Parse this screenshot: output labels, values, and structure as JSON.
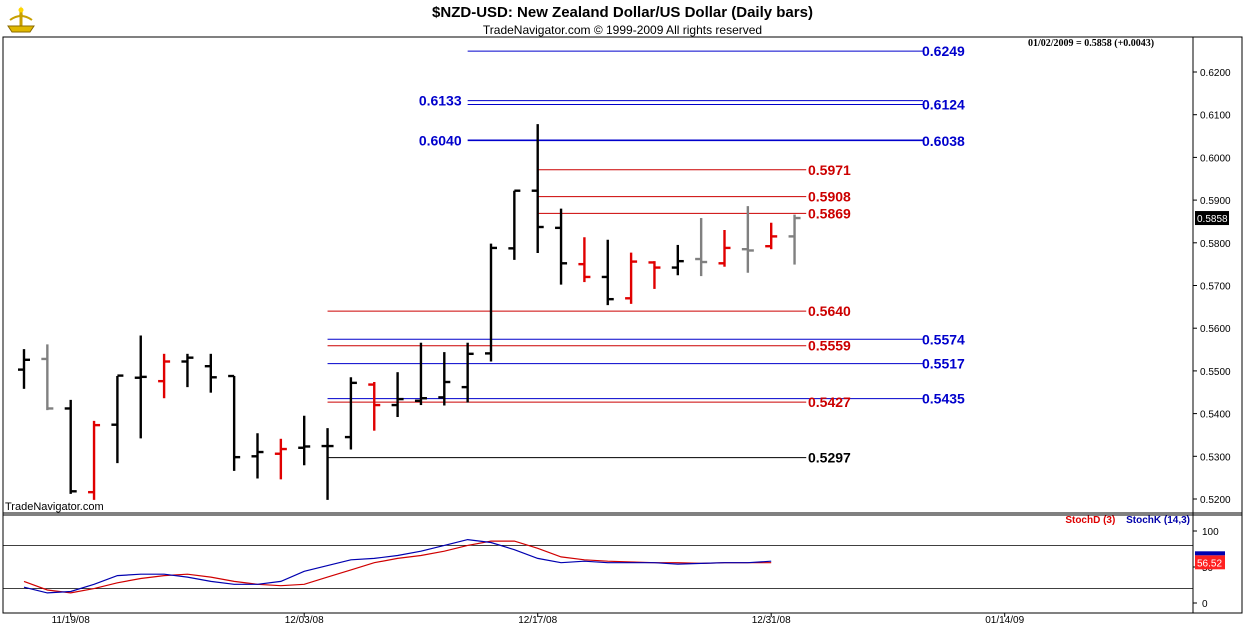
{
  "header": {
    "title": "$NZD-USD:  New Zealand Dollar/US Dollar  (Daily bars)",
    "copyright": "TradeNavigator.com © 1999-2009 All rights reserved",
    "readout": "01/02/2009 = 0.5858 (+0.0043)",
    "watermark": "TradeNavigator.com"
  },
  "stoch_legend": {
    "d": "StochD (3)",
    "k": "StochK (14,3)"
  },
  "colors": {
    "up": "#000000",
    "down": "#e00000",
    "neutral": "#808080",
    "blue": "#0000cc",
    "red": "#cc0000"
  },
  "chart_data": [
    {
      "type": "ohlc",
      "ylim": [
        0.518,
        0.626
      ],
      "y_ticks": [
        "0.5200",
        "0.5300",
        "0.5400",
        "0.5500",
        "0.5600",
        "0.5700",
        "0.5800",
        "0.5900",
        "0.6000",
        "0.6100",
        "0.6200"
      ],
      "x_ticks": [
        {
          "label": "11/19/08",
          "index": 2
        },
        {
          "label": "12/03/08",
          "index": 12
        },
        {
          "label": "12/17/08",
          "index": 22
        },
        {
          "label": "12/31/08",
          "index": 32
        },
        {
          "label": "01/14/09",
          "index": 42
        }
      ],
      "last_price": {
        "label": "0.5858",
        "value": 0.5858
      },
      "bars": [
        {
          "o": 0.5503,
          "h": 0.5551,
          "l": 0.5458,
          "c": 0.5526,
          "color": "up"
        },
        {
          "o": 0.5528,
          "h": 0.5562,
          "l": 0.5408,
          "c": 0.5412,
          "color": "neutral"
        },
        {
          "o": 0.5412,
          "h": 0.5432,
          "l": 0.5212,
          "c": 0.5218,
          "color": "up"
        },
        {
          "o": 0.5216,
          "h": 0.5383,
          "l": 0.5198,
          "c": 0.5373,
          "color": "down"
        },
        {
          "o": 0.5374,
          "h": 0.5488,
          "l": 0.5284,
          "c": 0.5489,
          "color": "up"
        },
        {
          "o": 0.5484,
          "h": 0.5583,
          "l": 0.5342,
          "c": 0.5486,
          "color": "up"
        },
        {
          "o": 0.5476,
          "h": 0.554,
          "l": 0.5436,
          "c": 0.5522,
          "color": "down"
        },
        {
          "o": 0.5522,
          "h": 0.554,
          "l": 0.5462,
          "c": 0.5531,
          "color": "up"
        },
        {
          "o": 0.5511,
          "h": 0.554,
          "l": 0.5449,
          "c": 0.5485,
          "color": "up"
        },
        {
          "o": 0.5488,
          "h": 0.5488,
          "l": 0.5266,
          "c": 0.5298,
          "color": "up"
        },
        {
          "o": 0.53,
          "h": 0.5354,
          "l": 0.5248,
          "c": 0.531,
          "color": "up"
        },
        {
          "o": 0.5306,
          "h": 0.5341,
          "l": 0.5246,
          "c": 0.5317,
          "color": "down"
        },
        {
          "o": 0.532,
          "h": 0.5395,
          "l": 0.5279,
          "c": 0.5323,
          "color": "up"
        },
        {
          "o": 0.5324,
          "h": 0.5366,
          "l": 0.5198,
          "c": 0.5324,
          "color": "up"
        },
        {
          "o": 0.5345,
          "h": 0.5485,
          "l": 0.5316,
          "c": 0.5472,
          "color": "up"
        },
        {
          "o": 0.5468,
          "h": 0.5474,
          "l": 0.536,
          "c": 0.542,
          "color": "down"
        },
        {
          "o": 0.542,
          "h": 0.5497,
          "l": 0.5392,
          "c": 0.5434,
          "color": "up"
        },
        {
          "o": 0.543,
          "h": 0.5566,
          "l": 0.542,
          "c": 0.5436,
          "color": "up"
        },
        {
          "o": 0.5438,
          "h": 0.5544,
          "l": 0.5419,
          "c": 0.5474,
          "color": "up"
        },
        {
          "o": 0.5462,
          "h": 0.5566,
          "l": 0.5426,
          "c": 0.554,
          "color": "up"
        },
        {
          "o": 0.5541,
          "h": 0.5798,
          "l": 0.5522,
          "c": 0.5788,
          "color": "up"
        },
        {
          "o": 0.5787,
          "h": 0.5922,
          "l": 0.576,
          "c": 0.5922,
          "color": "up"
        },
        {
          "o": 0.5922,
          "h": 0.6078,
          "l": 0.5776,
          "c": 0.5837,
          "color": "up"
        },
        {
          "o": 0.5835,
          "h": 0.588,
          "l": 0.5702,
          "c": 0.5752,
          "color": "up"
        },
        {
          "o": 0.575,
          "h": 0.5813,
          "l": 0.5708,
          "c": 0.572,
          "color": "down"
        },
        {
          "o": 0.572,
          "h": 0.5807,
          "l": 0.5654,
          "c": 0.5668,
          "color": "up"
        },
        {
          "o": 0.567,
          "h": 0.5777,
          "l": 0.5657,
          "c": 0.5756,
          "color": "down"
        },
        {
          "o": 0.5754,
          "h": 0.5757,
          "l": 0.5692,
          "c": 0.5742,
          "color": "down"
        },
        {
          "o": 0.5742,
          "h": 0.5795,
          "l": 0.5724,
          "c": 0.5757,
          "color": "up"
        },
        {
          "o": 0.5762,
          "h": 0.5858,
          "l": 0.5722,
          "c": 0.5755,
          "color": "neutral"
        },
        {
          "o": 0.5752,
          "h": 0.583,
          "l": 0.5744,
          "c": 0.5788,
          "color": "down"
        },
        {
          "o": 0.5785,
          "h": 0.5886,
          "l": 0.573,
          "c": 0.5782,
          "color": "neutral"
        },
        {
          "o": 0.5792,
          "h": 0.5847,
          "l": 0.5785,
          "c": 0.5815,
          "color": "down"
        },
        {
          "o": 0.5815,
          "h": 0.5866,
          "l": 0.5749,
          "c": 0.5858,
          "color": "neutral"
        }
      ],
      "levels": [
        {
          "value": 0.6249,
          "label": "0.6249",
          "color": "blue",
          "from": 19,
          "to": 38.5
        },
        {
          "value": 0.6133,
          "label": "0.6133",
          "color": "blue",
          "from": 19,
          "to": 38.5,
          "label_left": true
        },
        {
          "value": 0.6124,
          "label": "0.6124",
          "color": "blue",
          "from": 19,
          "to": 38.5
        },
        {
          "value": 0.604,
          "label": "0.6040",
          "color": "blue",
          "from": 19,
          "to": 38.5,
          "label_left": true,
          "bold": true
        },
        {
          "value": 0.6038,
          "label": "0.6038",
          "color": "blue",
          "from": 19,
          "to": 38.5,
          "hidden_line": true
        },
        {
          "value": 0.5971,
          "label": "0.5971",
          "color": "red",
          "from": 22,
          "to": 33.5
        },
        {
          "value": 0.5908,
          "label": "0.5908",
          "color": "red",
          "from": 22,
          "to": 33.5
        },
        {
          "value": 0.5869,
          "label": "0.5869",
          "color": "red",
          "from": 22,
          "to": 33.5
        },
        {
          "value": 0.564,
          "label": "0.5640",
          "color": "red",
          "from": 13,
          "to": 33.5
        },
        {
          "value": 0.5574,
          "label": "0.5574",
          "color": "blue",
          "from": 13,
          "to": 38.5
        },
        {
          "value": 0.5559,
          "label": "0.5559",
          "color": "red",
          "from": 13,
          "to": 33.5
        },
        {
          "value": 0.5517,
          "label": "0.5517",
          "color": "blue",
          "from": 13,
          "to": 38.5
        },
        {
          "value": 0.5435,
          "label": "0.5435",
          "color": "blue",
          "from": 13,
          "to": 38.5
        },
        {
          "value": 0.5427,
          "label": "0.5427",
          "color": "red",
          "from": 13,
          "to": 33.5
        },
        {
          "value": 0.5297,
          "label": "0.5297",
          "color": "black",
          "from": 13,
          "to": 33.5
        }
      ]
    },
    {
      "type": "line",
      "title": "StochD (3) StochK (14,3)",
      "ylim": [
        -10,
        110
      ],
      "y_ticks": [
        "0",
        "50",
        "100"
      ],
      "reference_lines": [
        20,
        80
      ],
      "last_value": {
        "label": "56.52",
        "value": 56.52
      },
      "series": [
        {
          "name": "StochD (3)",
          "color": "#d00000",
          "values": [
            30,
            18,
            14,
            20,
            28,
            34,
            38,
            40,
            36,
            30,
            26,
            24,
            26,
            36,
            46,
            56,
            62,
            66,
            72,
            80,
            86,
            86,
            76,
            64,
            60,
            58,
            57,
            56,
            56,
            55,
            56,
            56,
            56
          ]
        },
        {
          "name": "StochK (14,3)",
          "color": "#0000b0",
          "values": [
            22,
            14,
            16,
            26,
            38,
            40,
            40,
            36,
            30,
            26,
            26,
            30,
            44,
            52,
            60,
            62,
            66,
            72,
            80,
            88,
            84,
            74,
            62,
            56,
            58,
            56,
            56,
            56,
            54,
            55,
            56,
            56,
            58
          ]
        }
      ]
    }
  ]
}
